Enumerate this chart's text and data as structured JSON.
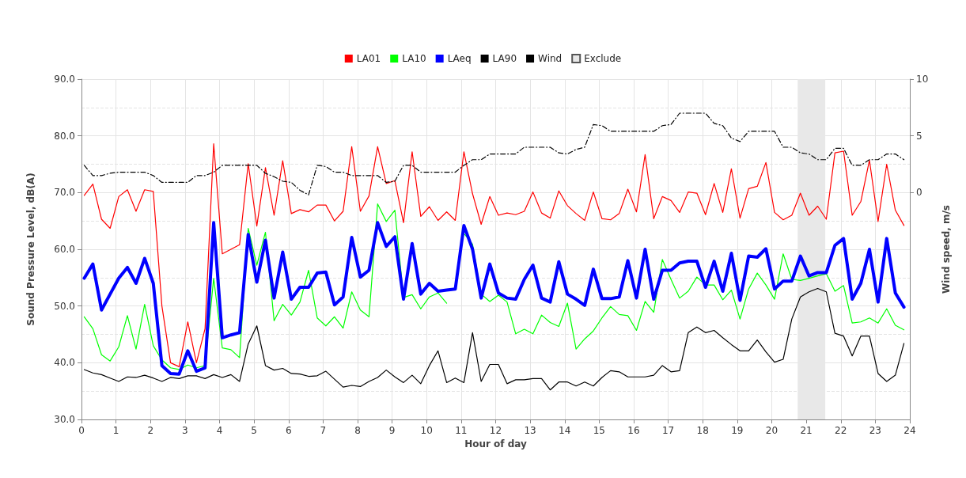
{
  "chart_data": {
    "type": "line",
    "xlabel": "Hour of day",
    "ylabel": "Sound Pressure Level, dB(A)",
    "y2label": "Wind speed, m/s",
    "x": [
      0.08,
      0.33,
      0.58,
      0.83,
      1.08,
      1.33,
      1.58,
      1.83,
      2.08,
      2.33,
      2.58,
      2.83,
      3.08,
      3.33,
      3.58,
      3.83,
      4.08,
      4.33,
      4.58,
      4.83,
      5.08,
      5.33,
      5.58,
      5.83,
      6.08,
      6.33,
      6.58,
      6.83,
      7.08,
      7.33,
      7.58,
      7.83,
      8.08,
      8.33,
      8.58,
      8.83,
      9.08,
      9.33,
      9.58,
      9.83,
      10.08,
      10.33,
      10.58,
      10.83,
      11.08,
      11.33,
      11.58,
      11.83,
      12.08,
      12.33,
      12.58,
      12.83,
      13.08,
      13.33,
      13.58,
      13.83,
      14.08,
      14.33,
      14.58,
      14.83,
      15.08,
      15.33,
      15.58,
      15.83,
      16.08,
      16.33,
      16.58,
      16.83,
      17.08,
      17.33,
      17.58,
      17.83,
      18.08,
      18.33,
      18.58,
      18.83,
      19.08,
      19.33,
      19.58,
      19.83,
      20.08,
      20.33,
      20.58,
      20.83,
      21.08,
      21.33,
      21.58,
      21.83,
      22.08,
      22.33,
      22.58,
      22.83,
      23.08,
      23.33,
      23.58,
      23.83
    ],
    "series": [
      {
        "name": "LA01",
        "color": "#ff0000",
        "values": [
          69.5,
          71.5,
          65.3,
          63.7,
          69.3,
          70.5,
          66.7,
          70.5,
          70.2,
          50.0,
          40.0,
          39.3,
          47.2,
          40.0,
          46.0,
          78.6,
          59.2,
          60.0,
          60.8,
          75.1,
          64.1,
          74.4,
          66.0,
          75.6,
          66.3,
          67.0,
          66.6,
          67.8,
          67.8,
          65.0,
          66.7,
          78.1,
          66.7,
          69.4,
          78.1,
          71.6,
          72.1,
          64.7,
          77.2,
          65.8,
          67.5,
          65.1,
          66.6,
          65.1,
          77.2,
          69.8,
          64.4,
          69.3,
          66.0,
          66.4,
          66.1,
          66.7,
          70.1,
          66.4,
          65.5,
          70.3,
          67.7,
          66.3,
          65.1,
          70.1,
          65.4,
          65.2,
          66.3,
          70.6,
          66.6,
          76.7,
          65.4,
          69.3,
          68.6,
          66.5,
          70.1,
          69.9,
          66.1,
          71.6,
          66.5,
          74.2,
          65.5,
          70.7,
          71.1,
          75.3,
          66.5,
          65.2,
          66.0,
          69.9,
          66.0,
          67.6,
          65.3,
          77.0,
          77.3,
          66.0,
          68.4,
          75.7,
          64.9,
          75.0,
          66.9,
          64.2
        ]
      },
      {
        "name": "LA10",
        "color": "#00ff00",
        "values": [
          48.1,
          46.0,
          41.4,
          40.3,
          42.8,
          48.3,
          42.4,
          50.3,
          43.0,
          40.5,
          39.1,
          38.8,
          39.6,
          39.1,
          39.5,
          54.9,
          42.6,
          42.3,
          40.9,
          63.7,
          57.2,
          63.0,
          47.4,
          50.3,
          48.4,
          50.7,
          56.3,
          47.9,
          46.5,
          48.1,
          46.1,
          52.5,
          49.3,
          48.1,
          68.0,
          64.9,
          66.9,
          51.5,
          52.0,
          49.5,
          51.6,
          52.3,
          50.5,
          null,
          62.8,
          60.9,
          52.1,
          50.8,
          51.9,
          50.7,
          45.1,
          45.9,
          45.1,
          48.4,
          47.1,
          46.4,
          50.5,
          42.4,
          44.2,
          45.6,
          47.9,
          49.9,
          48.5,
          48.3,
          45.7,
          50.8,
          48.9,
          58.2,
          54.7,
          51.4,
          52.6,
          55.1,
          53.7,
          53.7,
          51.1,
          52.8,
          47.7,
          53.0,
          55.8,
          53.7,
          51.2,
          59.2,
          54.7,
          54.5,
          54.9,
          55.3,
          55.7,
          52.6,
          53.6,
          47.0,
          47.2,
          47.9,
          47.0,
          49.5,
          46.6,
          45.8
        ]
      },
      {
        "name": "LAeq",
        "color": "#0000ff",
        "values": [
          54.9,
          57.4,
          49.3,
          52.1,
          54.9,
          56.8,
          54.0,
          58.4,
          54.0,
          39.5,
          38.1,
          38.0,
          42.1,
          38.5,
          39.1,
          64.7,
          44.4,
          44.9,
          45.3,
          62.6,
          54.2,
          61.6,
          51.4,
          59.5,
          51.2,
          53.3,
          53.3,
          55.8,
          56.0,
          50.2,
          51.6,
          62.1,
          55.1,
          56.3,
          64.7,
          60.5,
          62.2,
          51.2,
          61.0,
          52.1,
          54.0,
          52.6,
          52.8,
          53.0,
          64.2,
          60.0,
          51.4,
          57.4,
          52.3,
          51.4,
          51.2,
          54.7,
          57.2,
          51.4,
          50.7,
          57.8,
          52.1,
          51.2,
          50.1,
          56.5,
          51.3,
          51.3,
          51.6,
          58.0,
          51.4,
          60.0,
          51.2,
          56.3,
          56.3,
          57.6,
          57.9,
          57.9,
          53.3,
          57.9,
          52.6,
          59.3,
          51.0,
          58.8,
          58.6,
          60.1,
          53.0,
          54.4,
          54.4,
          58.8,
          55.3,
          55.9,
          55.9,
          60.7,
          61.9,
          51.2,
          54.0,
          60.0,
          50.7,
          61.9,
          52.3,
          49.8
        ]
      },
      {
        "name": "LA90",
        "color": "#000000",
        "values": [
          38.8,
          38.2,
          37.9,
          37.3,
          36.7,
          37.5,
          37.4,
          37.8,
          37.3,
          36.7,
          37.4,
          37.2,
          37.7,
          37.7,
          37.2,
          37.9,
          37.4,
          37.9,
          36.7,
          43.3,
          46.5,
          39.5,
          38.7,
          39.0,
          38.1,
          38.0,
          37.6,
          37.7,
          38.5,
          37.1,
          35.7,
          36.0,
          35.8,
          36.7,
          37.4,
          38.7,
          37.5,
          36.5,
          37.8,
          36.3,
          39.5,
          42.1,
          36.5,
          37.3,
          36.5,
          45.3,
          36.7,
          39.7,
          39.7,
          36.3,
          37.0,
          37.0,
          37.2,
          37.2,
          35.2,
          36.6,
          36.6,
          35.9,
          36.6,
          35.9,
          37.4,
          38.6,
          38.4,
          37.5,
          37.5,
          37.5,
          37.8,
          39.5,
          38.4,
          38.6,
          45.3,
          46.3,
          45.3,
          45.7,
          44.4,
          43.2,
          42.1,
          42.1,
          44.0,
          41.9,
          40.1,
          40.6,
          47.7,
          51.6,
          52.5,
          53.1,
          52.5,
          45.2,
          44.7,
          41.2,
          44.7,
          44.7,
          38.1,
          36.7,
          37.8,
          43.4
        ]
      },
      {
        "name": "Wind",
        "color": "#000000",
        "axis": "y2",
        "line_style": "dashed",
        "values": [
          2.4,
          1.5,
          1.5,
          1.7,
          1.8,
          1.8,
          1.8,
          1.8,
          1.5,
          0.9,
          0.9,
          0.9,
          0.9,
          1.5,
          1.5,
          1.8,
          2.4,
          2.4,
          2.4,
          2.4,
          2.4,
          1.7,
          1.4,
          1.0,
          0.9,
          0.2,
          -0.2,
          2.4,
          2.3,
          1.8,
          1.8,
          1.5,
          1.5,
          1.5,
          1.5,
          0.9,
          1.0,
          2.4,
          2.4,
          1.8,
          1.8,
          1.8,
          1.8,
          1.8,
          2.4,
          2.9,
          2.9,
          3.4,
          3.4,
          3.4,
          3.4,
          4.0,
          4.0,
          4.0,
          4.0,
          3.5,
          3.4,
          3.8,
          4.0,
          6.0,
          5.9,
          5.4,
          5.4,
          5.4,
          5.4,
          5.4,
          5.4,
          5.9,
          6.0,
          7.0,
          7.0,
          7.0,
          7.0,
          6.1,
          5.9,
          4.8,
          4.5,
          5.4,
          5.4,
          5.4,
          5.4,
          4.0,
          4.0,
          3.5,
          3.4,
          2.9,
          2.9,
          3.9,
          3.9,
          2.4,
          2.4,
          2.9,
          2.9,
          3.4,
          3.4,
          2.9
        ]
      }
    ],
    "bands": [
      {
        "axis": "x",
        "from": 20.75,
        "to": 21.55,
        "label": "Exclude",
        "color": "#e8e8e8"
      }
    ],
    "xlim": [
      0,
      24
    ],
    "xticks": [
      0,
      1,
      2,
      3,
      4,
      5,
      6,
      7,
      8,
      9,
      10,
      11,
      12,
      13,
      14,
      15,
      16,
      17,
      18,
      19,
      20,
      21,
      22,
      23,
      24
    ],
    "ylim": [
      30,
      90
    ],
    "yticks": [
      {
        "value": 30,
        "label": "30.0"
      },
      {
        "value": 40,
        "label": "40.0"
      },
      {
        "value": 50,
        "label": "50.0"
      },
      {
        "value": 60,
        "label": "60.0"
      },
      {
        "value": 70,
        "label": "70.0"
      },
      {
        "value": 80,
        "label": "80.0"
      },
      {
        "value": 90,
        "label": "90.0"
      }
    ],
    "y2lim": [
      -20,
      10
    ],
    "y2ticks": [
      0,
      5,
      10
    ],
    "grid": true,
    "legend": "top",
    "marker": "none",
    "line_style": "solid"
  }
}
